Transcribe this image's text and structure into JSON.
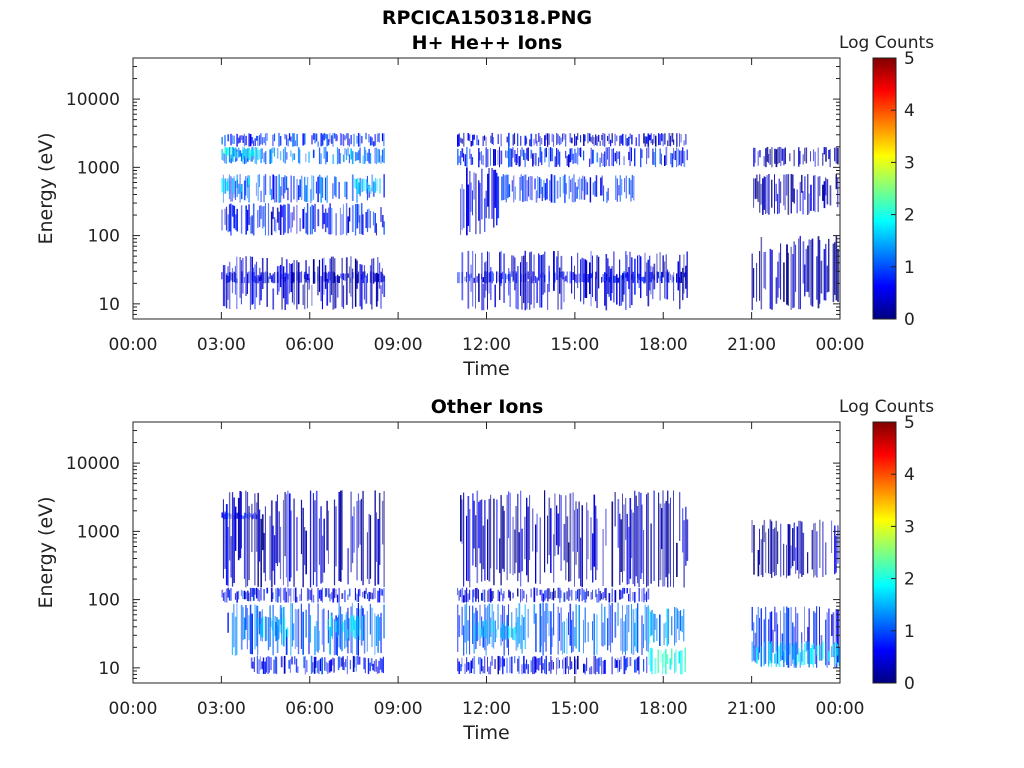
{
  "figure": {
    "title": "RPCICA150318.PNG"
  },
  "colors": {
    "colormap": [
      "#000080",
      "#0000ff",
      "#0080ff",
      "#00ffff",
      "#80ff80",
      "#ffff00",
      "#ff8000",
      "#ff0000",
      "#800000"
    ],
    "axes": "#222222",
    "background": "#ffffff"
  },
  "chart_data": [
    {
      "type": "heatmap",
      "title": "H+ He++ Ions",
      "xlabel": "Time",
      "ylabel": "Energy (eV)",
      "yscale": "log",
      "ylim": [
        6,
        40000
      ],
      "xlim": [
        0,
        24
      ],
      "x_ticks": [
        "00:00",
        "03:00",
        "06:00",
        "09:00",
        "12:00",
        "15:00",
        "18:00",
        "21:00",
        "00:00"
      ],
      "y_ticks": [
        "10",
        "100",
        "1000",
        "10000"
      ],
      "y_tick_values": [
        10,
        100,
        1000,
        10000
      ],
      "colorbar": {
        "label": "Log Counts",
        "range": [
          0,
          5
        ],
        "ticks": [
          "0",
          "1",
          "2",
          "3",
          "4",
          "5"
        ]
      },
      "data_intervals_hours": [
        [
          3.0,
          8.5
        ],
        [
          11.0,
          18.8
        ],
        [
          21.0,
          24.0
        ]
      ],
      "bands": [
        {
          "t": [
            3.0,
            8.5
          ],
          "e": [
            2000,
            3200
          ],
          "level": 0.8
        },
        {
          "t": [
            3.0,
            8.5
          ],
          "e": [
            1100,
            2000
          ],
          "level": 1.2
        },
        {
          "t": [
            3.0,
            4.3
          ],
          "e": [
            1300,
            2000
          ],
          "level": 1.8
        },
        {
          "t": [
            3.0,
            8.5
          ],
          "e": [
            300,
            800
          ],
          "level": 1.0
        },
        {
          "t": [
            3.0,
            4.0
          ],
          "e": [
            400,
            700
          ],
          "level": 1.6
        },
        {
          "t": [
            7.5,
            8.4
          ],
          "e": [
            400,
            700
          ],
          "level": 1.6
        },
        {
          "t": [
            3.0,
            8.5
          ],
          "e": [
            100,
            300
          ],
          "level": 0.7
        },
        {
          "t": [
            3.0,
            8.5
          ],
          "e": [
            20,
            30
          ],
          "level": 0.5
        },
        {
          "t": [
            3.0,
            8.5
          ],
          "e": [
            8,
            50
          ],
          "level": 0.4
        },
        {
          "t": [
            11.0,
            18.8
          ],
          "e": [
            1000,
            2000
          ],
          "level": 0.7
        },
        {
          "t": [
            11.0,
            18.8
          ],
          "e": [
            2000,
            3200
          ],
          "level": 0.5
        },
        {
          "t": [
            12.5,
            17.0
          ],
          "e": [
            300,
            800
          ],
          "level": 0.8
        },
        {
          "t": [
            11.0,
            12.5
          ],
          "e": [
            100,
            1000
          ],
          "level": 0.5
        },
        {
          "t": [
            11.0,
            18.8
          ],
          "e": [
            20,
            30
          ],
          "level": 0.6
        },
        {
          "t": [
            11.0,
            18.8
          ],
          "e": [
            8,
            60
          ],
          "level": 0.4
        },
        {
          "t": [
            21.0,
            24.0
          ],
          "e": [
            1000,
            2000
          ],
          "level": 0.3
        },
        {
          "t": [
            21.0,
            24.0
          ],
          "e": [
            200,
            800
          ],
          "level": 0.2
        },
        {
          "t": [
            21.0,
            24.0
          ],
          "e": [
            8,
            100
          ],
          "level": 0.2
        }
      ]
    },
    {
      "type": "heatmap",
      "title": "Other Ions",
      "xlabel": "Time",
      "ylabel": "Energy (eV)",
      "yscale": "log",
      "ylim": [
        6,
        40000
      ],
      "xlim": [
        0,
        24
      ],
      "x_ticks": [
        "00:00",
        "03:00",
        "06:00",
        "09:00",
        "12:00",
        "15:00",
        "18:00",
        "21:00",
        "00:00"
      ],
      "y_ticks": [
        "10",
        "100",
        "1000",
        "10000"
      ],
      "y_tick_values": [
        10,
        100,
        1000,
        10000
      ],
      "colorbar": {
        "label": "Log Counts",
        "range": [
          0,
          5
        ],
        "ticks": [
          "0",
          "1",
          "2",
          "3",
          "4",
          "5"
        ]
      },
      "data_intervals_hours": [
        [
          3.0,
          8.5
        ],
        [
          11.0,
          18.8
        ],
        [
          21.0,
          24.0
        ]
      ],
      "bands": [
        {
          "t": [
            3.0,
            8.5
          ],
          "e": [
            150,
            4000
          ],
          "level": 0.3
        },
        {
          "t": [
            3.0,
            4.2
          ],
          "e": [
            1500,
            1900
          ],
          "level": 0.6
        },
        {
          "t": [
            3.0,
            8.5
          ],
          "e": [
            90,
            150
          ],
          "level": 0.6
        },
        {
          "t": [
            3.2,
            8.5
          ],
          "e": [
            15,
            90
          ],
          "level": 1.1
        },
        {
          "t": [
            4.2,
            5.5
          ],
          "e": [
            25,
            60
          ],
          "level": 1.6
        },
        {
          "t": [
            6.5,
            7.8
          ],
          "e": [
            25,
            60
          ],
          "level": 1.6
        },
        {
          "t": [
            4.0,
            8.5
          ],
          "e": [
            8,
            15
          ],
          "level": 0.7
        },
        {
          "t": [
            11.0,
            18.8
          ],
          "e": [
            150,
            4000
          ],
          "level": 0.3
        },
        {
          "t": [
            11.0,
            17.5
          ],
          "e": [
            90,
            150
          ],
          "level": 0.5
        },
        {
          "t": [
            11.0,
            17.5
          ],
          "e": [
            15,
            90
          ],
          "level": 1.1
        },
        {
          "t": [
            11.5,
            13.0
          ],
          "e": [
            25,
            50
          ],
          "level": 1.6
        },
        {
          "t": [
            11.0,
            17.5
          ],
          "e": [
            8,
            15
          ],
          "level": 0.6
        },
        {
          "t": [
            17.5,
            18.8
          ],
          "e": [
            20,
            80
          ],
          "level": 1.3
        },
        {
          "t": [
            17.5,
            18.8
          ],
          "e": [
            8,
            20
          ],
          "level": 2.0
        },
        {
          "t": [
            21.0,
            24.0
          ],
          "e": [
            200,
            1500
          ],
          "level": 0.2
        },
        {
          "t": [
            21.0,
            24.0
          ],
          "e": [
            10,
            80
          ],
          "level": 0.7
        },
        {
          "t": [
            21.0,
            24.0
          ],
          "e": [
            10,
            25
          ],
          "level": 1.6
        }
      ]
    }
  ]
}
